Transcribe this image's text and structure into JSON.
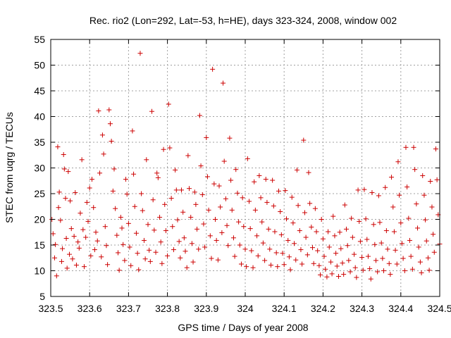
{
  "chart_data": {
    "type": "scatter",
    "title": "Rec. rio2 (Lon=292, Lat=-53, h=HE), days 323-324, 2008, window 002",
    "xlabel": "GPS time / Days of year 2008",
    "ylabel": "STEC from uqrg / TECUs",
    "xlim": [
      323.5,
      324.5
    ],
    "ylim": [
      5,
      55
    ],
    "xticks": [
      "323.5",
      "323.6",
      "323.7",
      "323.8",
      "323.9",
      "324",
      "324.1",
      "324.2",
      "324.3",
      "324.4",
      "324.5"
    ],
    "yticks": [
      "5",
      "10",
      "15",
      "20",
      "25",
      "30",
      "35",
      "40",
      "45",
      "50",
      "55"
    ],
    "grid": true,
    "marker": "+",
    "color": "#cc0000",
    "series": [
      {
        "points": [
          [
            323.503,
            20.0
          ],
          [
            323.506,
            17.2
          ],
          [
            323.51,
            12.5
          ],
          [
            323.512,
            15.1
          ],
          [
            323.515,
            9.0
          ],
          [
            323.518,
            34.1
          ],
          [
            323.52,
            22.3
          ],
          [
            323.522,
            25.3
          ],
          [
            323.525,
            19.8
          ],
          [
            323.528,
            11.8
          ],
          [
            323.53,
            14.3
          ],
          [
            323.533,
            32.6
          ],
          [
            323.535,
            29.8
          ],
          [
            323.538,
            24.1
          ],
          [
            323.54,
            16.3
          ],
          [
            323.542,
            10.5
          ],
          [
            323.545,
            29.3
          ],
          [
            323.548,
            13.2
          ],
          [
            323.55,
            23.6
          ],
          [
            323.553,
            18.2
          ],
          [
            323.556,
            12.3
          ],
          [
            323.56,
            16.7
          ],
          [
            323.563,
            25.2
          ],
          [
            323.566,
            11.1
          ],
          [
            323.57,
            15.6
          ],
          [
            323.573,
            14.4
          ],
          [
            323.576,
            21.2
          ],
          [
            323.58,
            31.6
          ],
          [
            323.583,
            18.0
          ],
          [
            323.586,
            10.8
          ],
          [
            323.59,
            16.5
          ],
          [
            323.593,
            23.3
          ],
          [
            323.596,
            19.6
          ],
          [
            323.6,
            26.1
          ],
          [
            323.603,
            12.9
          ],
          [
            323.606,
            27.8
          ],
          [
            323.61,
            22.3
          ],
          [
            323.613,
            14.1
          ],
          [
            323.616,
            17.5
          ],
          [
            323.62,
            15.8
          ],
          [
            323.623,
            41.1
          ],
          [
            323.626,
            29.0
          ],
          [
            323.63,
            12.7
          ],
          [
            323.633,
            36.4
          ],
          [
            323.636,
            32.7
          ],
          [
            323.64,
            18.6
          ],
          [
            323.643,
            14.9
          ],
          [
            323.646,
            11.2
          ],
          [
            323.65,
            41.3
          ],
          [
            323.653,
            38.6
          ],
          [
            323.656,
            35.2
          ],
          [
            323.66,
            25.5
          ],
          [
            323.663,
            29.8
          ],
          [
            323.666,
            22.1
          ],
          [
            323.67,
            16.9
          ],
          [
            323.673,
            13.5
          ],
          [
            323.676,
            10.1
          ],
          [
            323.68,
            20.4
          ],
          [
            323.683,
            18.3
          ],
          [
            323.686,
            15.1
          ],
          [
            323.69,
            12.0
          ],
          [
            323.693,
            27.8
          ],
          [
            323.696,
            24.9
          ],
          [
            323.7,
            19.2
          ],
          [
            323.703,
            14.6
          ],
          [
            323.706,
            11.0
          ],
          [
            323.71,
            37.2
          ],
          [
            323.713,
            28.8
          ],
          [
            323.716,
            22.5
          ],
          [
            323.72,
            17.3
          ],
          [
            323.723,
            13.4
          ],
          [
            323.726,
            10.2
          ],
          [
            323.73,
            52.3
          ],
          [
            323.733,
            25.0
          ],
          [
            323.736,
            21.7
          ],
          [
            323.74,
            15.9
          ],
          [
            323.743,
            12.3
          ],
          [
            323.746,
            31.6
          ],
          [
            323.75,
            19.0
          ],
          [
            323.753,
            14.0
          ],
          [
            323.756,
            11.8
          ],
          [
            323.76,
            41.0
          ],
          [
            323.763,
            23.8
          ],
          [
            323.766,
            17.9
          ],
          [
            323.77,
            13.6
          ],
          [
            323.773,
            29.0
          ],
          [
            323.776,
            28.1
          ],
          [
            323.78,
            20.4
          ],
          [
            323.783,
            15.6
          ],
          [
            323.786,
            11.4
          ],
          [
            323.79,
            33.6
          ],
          [
            323.793,
            22.9
          ],
          [
            323.796,
            17.8
          ],
          [
            323.8,
            12.9
          ],
          [
            323.803,
            42.4
          ],
          [
            323.806,
            33.9
          ],
          [
            323.81,
            24.1
          ],
          [
            323.813,
            18.6
          ],
          [
            323.816,
            14.1
          ],
          [
            323.82,
            29.6
          ],
          [
            323.823,
            25.7
          ],
          [
            323.826,
            19.9
          ],
          [
            323.83,
            15.7
          ],
          [
            323.833,
            12.5
          ],
          [
            323.836,
            25.7
          ],
          [
            323.84,
            21.4
          ],
          [
            323.843,
            16.4
          ],
          [
            323.846,
            13.8
          ],
          [
            323.85,
            10.6
          ],
          [
            323.853,
            32.4
          ],
          [
            323.856,
            26.0
          ],
          [
            323.86,
            20.4
          ],
          [
            323.863,
            15.3
          ],
          [
            323.866,
            11.7
          ],
          [
            323.87,
            25.3
          ],
          [
            323.873,
            22.9
          ],
          [
            323.876,
            18.1
          ],
          [
            323.88,
            14.2
          ],
          [
            323.883,
            40.2
          ],
          [
            323.886,
            30.4
          ],
          [
            323.89,
            24.8
          ],
          [
            323.893,
            19.1
          ],
          [
            323.896,
            14.6
          ],
          [
            323.9,
            35.9
          ],
          [
            323.903,
            28.3
          ],
          [
            323.906,
            21.8
          ],
          [
            323.91,
            16.8
          ],
          [
            323.913,
            12.4
          ],
          [
            323.916,
            49.2
          ],
          [
            323.92,
            26.9
          ],
          [
            323.923,
            20.0
          ],
          [
            323.926,
            15.9
          ],
          [
            323.93,
            12.1
          ],
          [
            323.933,
            26.5
          ],
          [
            323.936,
            22.4
          ],
          [
            323.94,
            17.4
          ],
          [
            323.943,
            46.5
          ],
          [
            323.946,
            31.3
          ],
          [
            323.95,
            24.0
          ],
          [
            323.953,
            18.8
          ],
          [
            323.956,
            14.9
          ],
          [
            323.96,
            35.8
          ],
          [
            323.963,
            27.6
          ],
          [
            323.966,
            21.8
          ],
          [
            323.97,
            16.4
          ],
          [
            323.973,
            12.8
          ],
          [
            323.976,
            29.7
          ],
          [
            323.98,
            25.1
          ],
          [
            323.983,
            19.5
          ],
          [
            323.986,
            15.0
          ],
          [
            323.99,
            11.3
          ],
          [
            323.993,
            24.2
          ],
          [
            323.996,
            18.6
          ],
          [
            324.0,
            14.2
          ],
          [
            324.003,
            10.8
          ],
          [
            324.006,
            31.8
          ],
          [
            324.01,
            23.5
          ],
          [
            324.013,
            18.2
          ],
          [
            324.016,
            13.9
          ],
          [
            324.02,
            10.6
          ],
          [
            324.023,
            27.3
          ],
          [
            324.026,
            21.8
          ],
          [
            324.03,
            16.8
          ],
          [
            324.033,
            12.9
          ],
          [
            324.036,
            28.5
          ],
          [
            324.04,
            24.2
          ],
          [
            324.043,
            19.5
          ],
          [
            324.046,
            15.4
          ],
          [
            324.05,
            12.0
          ],
          [
            324.053,
            27.8
          ],
          [
            324.056,
            23.3
          ],
          [
            324.06,
            18.1
          ],
          [
            324.063,
            14.2
          ],
          [
            324.066,
            11.1
          ],
          [
            324.07,
            27.6
          ],
          [
            324.073,
            22.6
          ],
          [
            324.076,
            17.6
          ],
          [
            324.08,
            13.5
          ],
          [
            324.083,
            10.8
          ],
          [
            324.086,
            25.5
          ],
          [
            324.09,
            21.5
          ],
          [
            324.093,
            17.0
          ],
          [
            324.096,
            13.4
          ],
          [
            324.1,
            11.2
          ],
          [
            324.103,
            25.6
          ],
          [
            324.106,
            20.1
          ],
          [
            324.11,
            15.9
          ],
          [
            324.113,
            12.7
          ],
          [
            324.116,
            10.2
          ],
          [
            324.12,
            24.3
          ],
          [
            324.123,
            19.3
          ],
          [
            324.126,
            15.3
          ],
          [
            324.13,
            12.1
          ],
          [
            324.133,
            29.6
          ],
          [
            324.136,
            22.7
          ],
          [
            324.14,
            17.8
          ],
          [
            324.143,
            14.1
          ],
          [
            324.146,
            11.3
          ],
          [
            324.15,
            35.4
          ],
          [
            324.153,
            21.3
          ],
          [
            324.156,
            16.5
          ],
          [
            324.16,
            13.1
          ],
          [
            324.163,
            29.1
          ],
          [
            324.166,
            23.1
          ],
          [
            324.17,
            18.5
          ],
          [
            324.173,
            14.5
          ],
          [
            324.176,
            11.4
          ],
          [
            324.18,
            22.1
          ],
          [
            324.183,
            17.6
          ],
          [
            324.186,
            13.9
          ],
          [
            324.19,
            11.0
          ],
          [
            324.193,
            9.2
          ],
          [
            324.196,
            20.0
          ],
          [
            324.2,
            16.2
          ],
          [
            324.203,
            12.8
          ],
          [
            324.206,
            10.3
          ],
          [
            324.21,
            8.8
          ],
          [
            324.213,
            17.6
          ],
          [
            324.216,
            14.6
          ],
          [
            324.22,
            11.7
          ],
          [
            324.223,
            9.4
          ],
          [
            324.226,
            20.6
          ],
          [
            324.23,
            16.8
          ],
          [
            324.233,
            13.4
          ],
          [
            324.236,
            10.9
          ],
          [
            324.24,
            8.9
          ],
          [
            324.243,
            17.5
          ],
          [
            324.246,
            14.3
          ],
          [
            324.25,
            11.5
          ],
          [
            324.253,
            9.3
          ],
          [
            324.256,
            22.8
          ],
          [
            324.26,
            18.1
          ],
          [
            324.263,
            14.9
          ],
          [
            324.266,
            12.0
          ],
          [
            324.27,
            9.8
          ],
          [
            324.273,
            20.2
          ],
          [
            324.276,
            16.5
          ],
          [
            324.28,
            13.2
          ],
          [
            324.283,
            10.6
          ],
          [
            324.286,
            8.7
          ],
          [
            324.29,
            25.7
          ],
          [
            324.293,
            19.6
          ],
          [
            324.296,
            15.7
          ],
          [
            324.3,
            12.6
          ],
          [
            324.303,
            10.1
          ],
          [
            324.306,
            25.8
          ],
          [
            324.31,
            20.1
          ],
          [
            324.313,
            16.1
          ],
          [
            324.316,
            12.8
          ],
          [
            324.32,
            10.4
          ],
          [
            324.323,
            8.4
          ],
          [
            324.326,
            25.2
          ],
          [
            324.33,
            19.0
          ],
          [
            324.333,
            15.1
          ],
          [
            324.336,
            12.0
          ],
          [
            324.34,
            9.8
          ],
          [
            324.343,
            24.6
          ],
          [
            324.346,
            19.4
          ],
          [
            324.35,
            15.4
          ],
          [
            324.353,
            12.4
          ],
          [
            324.356,
            10.0
          ],
          [
            324.36,
            26.2
          ],
          [
            324.363,
            17.8
          ],
          [
            324.366,
            14.2
          ],
          [
            324.37,
            11.4
          ],
          [
            324.373,
            9.3
          ],
          [
            324.376,
            28.2
          ],
          [
            324.38,
            22.4
          ],
          [
            324.383,
            17.6
          ],
          [
            324.386,
            14.0
          ],
          [
            324.39,
            11.3
          ],
          [
            324.393,
            31.2
          ],
          [
            324.396,
            24.7
          ],
          [
            324.4,
            19.3
          ],
          [
            324.403,
            15.3
          ],
          [
            324.406,
            12.4
          ],
          [
            324.41,
            10.0
          ],
          [
            324.413,
            34.0
          ],
          [
            324.416,
            26.3
          ],
          [
            324.42,
            20.2
          ],
          [
            324.423,
            15.9
          ],
          [
            324.426,
            12.8
          ],
          [
            324.43,
            10.3
          ],
          [
            324.433,
            34.0
          ],
          [
            324.436,
            29.7
          ],
          [
            324.44,
            23.0
          ],
          [
            324.443,
            18.3
          ],
          [
            324.446,
            14.6
          ],
          [
            324.45,
            11.7
          ],
          [
            324.453,
            9.6
          ],
          [
            324.456,
            28.5
          ],
          [
            324.46,
            24.7
          ],
          [
            324.463,
            19.9
          ],
          [
            324.466,
            15.8
          ],
          [
            324.47,
            12.5
          ],
          [
            324.473,
            10.1
          ],
          [
            324.476,
            27.4
          ],
          [
            324.48,
            22.4
          ],
          [
            324.483,
            17.1
          ],
          [
            324.486,
            13.6
          ],
          [
            324.49,
            33.7
          ],
          [
            324.493,
            27.7
          ],
          [
            324.496,
            20.9
          ],
          [
            324.5,
            15.2
          ]
        ]
      }
    ]
  }
}
